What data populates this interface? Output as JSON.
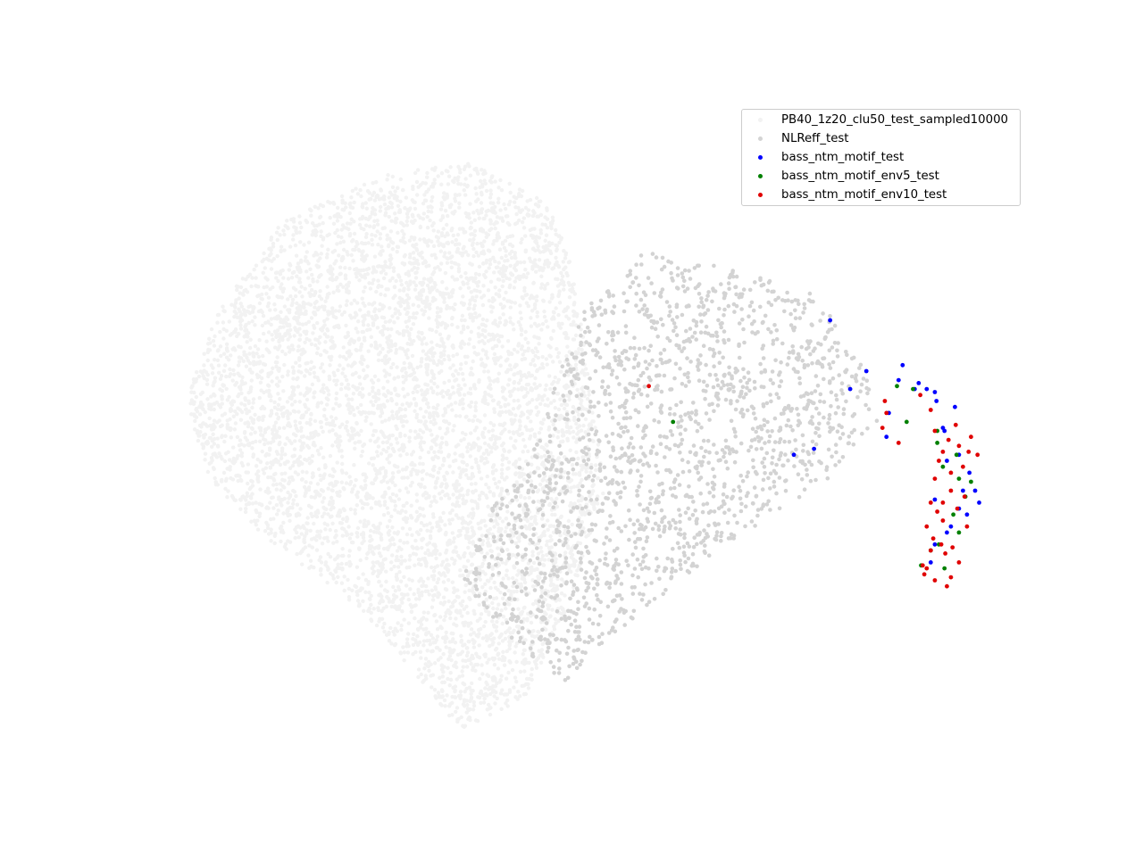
{
  "chart_data": {
    "type": "scatter",
    "title": "",
    "xlabel": "",
    "ylabel": "",
    "axes_visible": false,
    "grid": false,
    "legend_placement": "top-right",
    "xlim": [
      0,
      100
    ],
    "ylim": [
      0,
      100
    ],
    "series": [
      {
        "name": "PB40_1z20_clu50_test_sampled10000",
        "color": "#f2f2f2",
        "approx_count": 10000,
        "region": "broad cone-shaped cloud spanning the left and centre of the plot, widest on the left and narrowing to the right",
        "shape_points": [
          [
            0,
            55
          ],
          [
            4,
            70
          ],
          [
            12,
            85
          ],
          [
            25,
            93
          ],
          [
            35,
            95
          ],
          [
            45,
            88
          ],
          [
            48,
            78
          ],
          [
            50,
            60
          ],
          [
            52,
            40
          ],
          [
            48,
            22
          ],
          [
            42,
            5
          ],
          [
            34,
            0
          ],
          [
            22,
            20
          ],
          [
            10,
            32
          ],
          [
            3,
            42
          ]
        ]
      },
      {
        "name": "NLReff_test",
        "color": "#d3d3d3",
        "approx_count": 3500,
        "region": "right-centre half of the cloud, extending to the curved tip",
        "shape_points": [
          [
            37,
            35
          ],
          [
            44,
            50
          ],
          [
            49,
            70
          ],
          [
            57,
            80
          ],
          [
            65,
            78
          ],
          [
            78,
            73
          ],
          [
            84,
            62
          ],
          [
            86,
            52
          ],
          [
            80,
            42
          ],
          [
            66,
            30
          ],
          [
            55,
            18
          ],
          [
            47,
            8
          ],
          [
            40,
            15
          ],
          [
            34,
            26
          ]
        ]
      },
      {
        "name": "bass_ntm_motif_test",
        "color": "#0000ff",
        "points": [
          [
            80,
            68.5
          ],
          [
            84.5,
            60
          ],
          [
            82.5,
            57
          ],
          [
            88.5,
            58.5
          ],
          [
            90.5,
            57
          ],
          [
            92,
            57
          ],
          [
            93,
            56.5
          ],
          [
            93.2,
            55
          ],
          [
            94.2,
            50
          ],
          [
            96,
            46
          ],
          [
            97.3,
            43
          ],
          [
            98,
            40
          ],
          [
            97,
            36
          ],
          [
            95,
            34
          ],
          [
            93,
            31
          ],
          [
            92.5,
            28
          ],
          [
            94.5,
            33
          ],
          [
            93,
            38.5
          ],
          [
            94.5,
            45
          ],
          [
            96.5,
            40
          ],
          [
            78,
            47
          ],
          [
            75.5,
            46
          ],
          [
            87,
            49
          ],
          [
            87.3,
            53
          ],
          [
            89,
            61
          ],
          [
            91,
            58
          ],
          [
            95.5,
            54
          ],
          [
            94,
            50.5
          ],
          [
            96,
            37
          ],
          [
            98.5,
            38
          ]
        ]
      },
      {
        "name": "bass_ntm_motif_env5_test",
        "color": "#008000",
        "points": [
          [
            60.5,
            51.5
          ],
          [
            88.3,
            57.5
          ],
          [
            90.3,
            57
          ],
          [
            89.5,
            51.5
          ],
          [
            93.3,
            48
          ],
          [
            94,
            44
          ],
          [
            96,
            42
          ],
          [
            95.3,
            36
          ],
          [
            93.5,
            31
          ],
          [
            94.2,
            27
          ],
          [
            92.5,
            30
          ],
          [
            96.8,
            39
          ],
          [
            97.5,
            41.5
          ],
          [
            96,
            33
          ],
          [
            95.7,
            46
          ],
          [
            93.3,
            50
          ],
          [
            91.3,
            27.5
          ]
        ]
      },
      {
        "name": "bass_ntm_motif_env10_test",
        "color": "#e00000",
        "points": [
          [
            57.5,
            57.5
          ],
          [
            87,
            53
          ],
          [
            86.5,
            50.5
          ],
          [
            86.8,
            55
          ],
          [
            88.5,
            48
          ],
          [
            91.2,
            56
          ],
          [
            92.5,
            53.5
          ],
          [
            93,
            50
          ],
          [
            94,
            46.5
          ],
          [
            93,
            42
          ],
          [
            92.5,
            38
          ],
          [
            92,
            34
          ],
          [
            92.5,
            30
          ],
          [
            91.5,
            27.5
          ],
          [
            93,
            25
          ],
          [
            95,
            25.5
          ],
          [
            96,
            28
          ],
          [
            94,
            35
          ],
          [
            95,
            40
          ],
          [
            96.5,
            44
          ],
          [
            98.3,
            46
          ],
          [
            97.5,
            49
          ],
          [
            96,
            47.5
          ],
          [
            95,
            43
          ],
          [
            94,
            38
          ],
          [
            93.8,
            31
          ],
          [
            92,
            27
          ],
          [
            94.5,
            24
          ],
          [
            95.8,
            37
          ],
          [
            97,
            34
          ],
          [
            93.5,
            45
          ],
          [
            92.8,
            32
          ],
          [
            91.7,
            26
          ],
          [
            94.3,
            29.5
          ],
          [
            95.2,
            30.5
          ],
          [
            96.7,
            39
          ],
          [
            97.2,
            46.5
          ],
          [
            93.3,
            36.5
          ],
          [
            94.7,
            48.5
          ],
          [
            95.6,
            51
          ]
        ]
      }
    ]
  }
}
